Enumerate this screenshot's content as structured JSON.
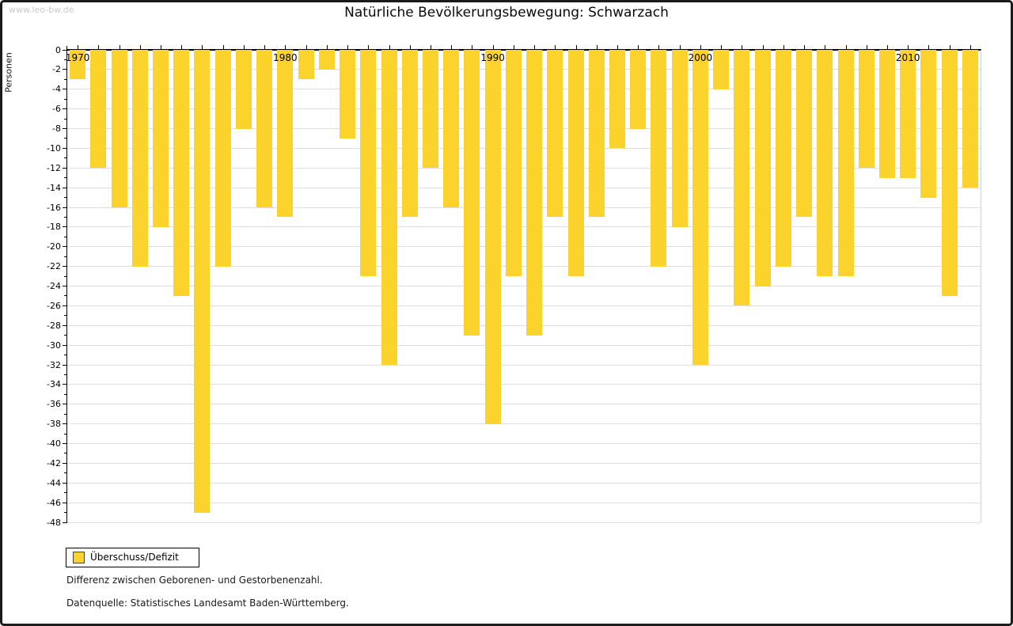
{
  "window": {
    "watermark": "www.leo-bw.de"
  },
  "chart_data": {
    "type": "bar",
    "title": "Natürliche Bevölkerungsbewegung: Schwarzach",
    "xlabel": "",
    "ylabel": "Personen",
    "series_name": "Überschuss/Defizit",
    "categories": [
      1970,
      1971,
      1972,
      1973,
      1974,
      1975,
      1976,
      1977,
      1978,
      1979,
      1980,
      1981,
      1982,
      1983,
      1984,
      1985,
      1986,
      1987,
      1988,
      1989,
      1990,
      1991,
      1992,
      1993,
      1994,
      1995,
      1996,
      1997,
      1998,
      1999,
      2000,
      2001,
      2002,
      2003,
      2004,
      2005,
      2006,
      2007,
      2008,
      2009,
      2010,
      2011,
      2012,
      2013
    ],
    "values": [
      -3,
      -12,
      -16,
      -22,
      -18,
      -25,
      -47,
      -22,
      -8,
      -16,
      -17,
      -3,
      -2,
      -9,
      -23,
      -32,
      -17,
      -12,
      -16,
      -29,
      -38,
      -23,
      -29,
      -17,
      -23,
      -17,
      -10,
      -8,
      -22,
      -18,
      -32,
      -4,
      -26,
      -24,
      -22,
      -17,
      -23,
      -23,
      -12,
      -13,
      -13,
      -15,
      -25,
      -14
    ],
    "ylim": [
      -48,
      0
    ],
    "ytick_step": 2,
    "ytick_labels": [
      "0",
      "-2",
      "-4",
      "-6",
      "-8",
      "-10",
      "-12",
      "-14",
      "-16",
      "-18",
      "-20",
      "-22",
      "-24",
      "-26",
      "-28",
      "-30",
      "-32",
      "-34",
      "-36",
      "-38",
      "-40",
      "-42",
      "-44",
      "-46",
      "-48"
    ],
    "xtick_labels": [
      "1970",
      "1980",
      "1990",
      "2000",
      "2010"
    ],
    "grid": "horizontal gridlines every 2, light gray",
    "legend_position": "bottom-left",
    "bar_color": "#fcd32d"
  },
  "legend": {
    "label": "Überschuss/Defizit"
  },
  "footnotes": {
    "line1": "Differenz zwischen Geborenen- und Gestorbenenzahl.",
    "line2": "Datenquelle: Statistisches Landesamt Baden-Württemberg."
  }
}
